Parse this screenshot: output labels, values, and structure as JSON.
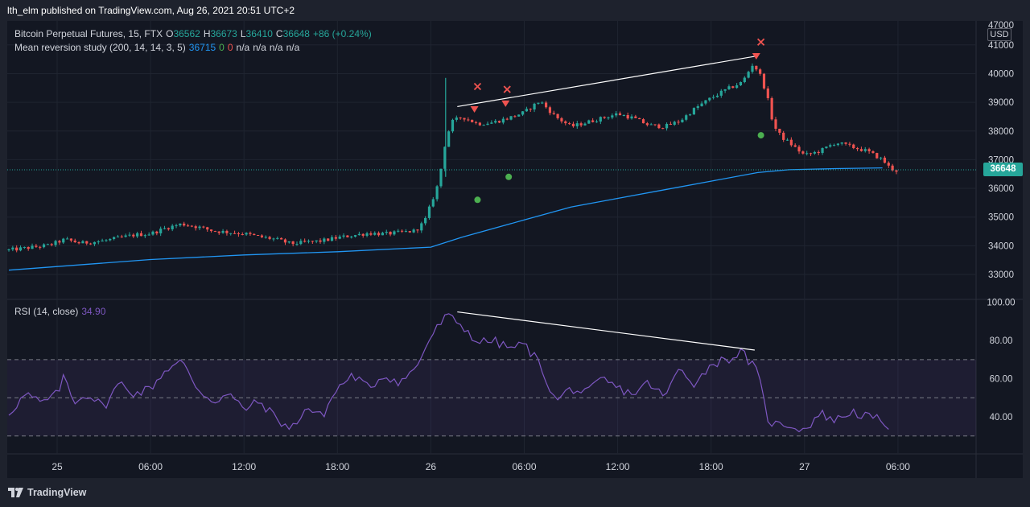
{
  "header": {
    "publisher_line": "lth_elm published on TradingView.com, Aug 26, 2021 20:51 UTC+2"
  },
  "legend": {
    "symbol": "Bitcoin Perpetual Futures, 15, FTX",
    "ohlc": {
      "o_label": "O",
      "o": "36562",
      "h_label": "H",
      "h": "36673",
      "l_label": "L",
      "l": "36410",
      "c_label": "C",
      "c": "36648",
      "change": "+86 (+0.24%)"
    },
    "study_name": "Mean reversion study (200, 14, 14, 3, 5)",
    "study_values": [
      "36715",
      "0",
      "0",
      "n/a",
      "n/a",
      "n/a",
      "n/a"
    ],
    "rsi_name": "RSI (14, close)",
    "rsi_value": "34.90"
  },
  "badges": {
    "last_price": "36648",
    "currency": "USD"
  },
  "footer": {
    "brand": "TradingView"
  },
  "colors": {
    "up": "#26a69a",
    "down": "#ef5350",
    "ma": "#2196f3",
    "rsi": "#7e57c2",
    "signal": "#4caf50",
    "background": "#131722"
  },
  "chart_data": [
    {
      "type": "candlestick",
      "ylim": [
        32500,
        47000
      ],
      "y_ticks": [
        "33000",
        "34000",
        "35000",
        "36000",
        "37000",
        "38000",
        "39000",
        "40000",
        "41000",
        "47000"
      ],
      "x_ticks": [
        {
          "label": "25",
          "hour": 0
        },
        {
          "label": "06:00",
          "hour": 6
        },
        {
          "label": "12:00",
          "hour": 12
        },
        {
          "label": "18:00",
          "hour": 18
        },
        {
          "label": "26",
          "hour": 24
        },
        {
          "label": "06:00",
          "hour": 30
        },
        {
          "label": "12:00",
          "hour": 36
        },
        {
          "label": "18:00",
          "hour": 42
        },
        {
          "label": "27",
          "hour": 48
        },
        {
          "label": "06:00",
          "hour": 54
        }
      ],
      "price_path": [
        {
          "h": -3.1,
          "p": 33850
        },
        {
          "h": -2,
          "p": 33920
        },
        {
          "h": -0.5,
          "p": 34020
        },
        {
          "h": 0.5,
          "p": 34220
        },
        {
          "h": 1.5,
          "p": 34090
        },
        {
          "h": 3,
          "p": 34170
        },
        {
          "h": 5,
          "p": 34380
        },
        {
          "h": 6,
          "p": 34420
        },
        {
          "h": 7,
          "p": 34620
        },
        {
          "h": 8,
          "p": 34760
        },
        {
          "h": 9,
          "p": 34660
        },
        {
          "h": 10,
          "p": 34520
        },
        {
          "h": 11,
          "p": 34470
        },
        {
          "h": 12,
          "p": 34420
        },
        {
          "h": 13,
          "p": 34310
        },
        {
          "h": 14,
          "p": 34230
        },
        {
          "h": 15,
          "p": 34070
        },
        {
          "h": 16,
          "p": 34120
        },
        {
          "h": 17,
          "p": 34170
        },
        {
          "h": 18,
          "p": 34280
        },
        {
          "h": 19,
          "p": 34360
        },
        {
          "h": 20,
          "p": 34440
        },
        {
          "h": 21,
          "p": 34410
        },
        {
          "h": 22,
          "p": 34460
        },
        {
          "h": 23,
          "p": 34520
        },
        {
          "h": 23.6,
          "p": 34850
        },
        {
          "h": 24,
          "p": 35450
        },
        {
          "h": 24.5,
          "p": 36200
        },
        {
          "h": 24.9,
          "p": 37500
        },
        {
          "h": 25.3,
          "p": 38300
        },
        {
          "h": 26,
          "p": 38500
        },
        {
          "h": 27,
          "p": 38250
        },
        {
          "h": 28,
          "p": 38300
        },
        {
          "h": 29,
          "p": 38450
        },
        {
          "h": 30,
          "p": 38650
        },
        {
          "h": 31,
          "p": 39050
        },
        {
          "h": 32,
          "p": 38500
        },
        {
          "h": 33,
          "p": 38150
        },
        {
          "h": 34,
          "p": 38300
        },
        {
          "h": 35,
          "p": 38450
        },
        {
          "h": 36,
          "p": 38600
        },
        {
          "h": 37,
          "p": 38450
        },
        {
          "h": 38,
          "p": 38200
        },
        {
          "h": 39,
          "p": 38150
        },
        {
          "h": 40,
          "p": 38350
        },
        {
          "h": 41,
          "p": 38800
        },
        {
          "h": 42,
          "p": 39150
        },
        {
          "h": 43,
          "p": 39450
        },
        {
          "h": 44,
          "p": 39700
        },
        {
          "h": 44.7,
          "p": 40350
        },
        {
          "h": 45.2,
          "p": 39900
        },
        {
          "h": 45.6,
          "p": 39200
        },
        {
          "h": 46,
          "p": 38200
        },
        {
          "h": 46.5,
          "p": 37800
        },
        {
          "h": 47,
          "p": 37600
        },
        {
          "h": 48,
          "p": 37150
        },
        {
          "h": 49,
          "p": 37300
        },
        {
          "h": 50,
          "p": 37600
        },
        {
          "h": 51,
          "p": 37450
        },
        {
          "h": 52,
          "p": 37300
        },
        {
          "h": 53,
          "p": 37000
        },
        {
          "h": 53.5,
          "p": 36700
        },
        {
          "h": 54,
          "p": 36600
        }
      ],
      "ma_path": [
        {
          "h": -3.1,
          "p": 33150
        },
        {
          "h": 6,
          "p": 33520
        },
        {
          "h": 12,
          "p": 33680
        },
        {
          "h": 18,
          "p": 33790
        },
        {
          "h": 24,
          "p": 33950
        },
        {
          "h": 26,
          "p": 34300
        },
        {
          "h": 30,
          "p": 34900
        },
        {
          "h": 33,
          "p": 35350
        },
        {
          "h": 36,
          "p": 35650
        },
        {
          "h": 39,
          "p": 35950
        },
        {
          "h": 42,
          "p": 36250
        },
        {
          "h": 45,
          "p": 36550
        },
        {
          "h": 47,
          "p": 36650
        },
        {
          "h": 50,
          "p": 36690
        },
        {
          "h": 53,
          "p": 36715
        }
      ],
      "trend_line": [
        {
          "h": 25.7,
          "p": 38850
        },
        {
          "h": 44.8,
          "p": 40600
        }
      ],
      "last_price": 36648,
      "sell_triangles": [
        {
          "h": 26.8,
          "p": 38750
        },
        {
          "h": 28.8,
          "p": 38950
        },
        {
          "h": 44.9,
          "p": 40600
        }
      ],
      "sell_crosses": [
        {
          "h": 27.0,
          "p": 39550
        },
        {
          "h": 28.9,
          "p": 39450
        },
        {
          "h": 45.2,
          "p": 41100
        }
      ],
      "buy_dots": [
        {
          "h": 27.0,
          "p": 35600
        },
        {
          "h": 29.0,
          "p": 36400
        },
        {
          "h": 45.2,
          "p": 37850
        }
      ]
    },
    {
      "type": "line",
      "ylim": [
        25,
        100
      ],
      "y_ticks": [
        "40.00",
        "60.00",
        "80.00",
        "100.00"
      ],
      "bands": {
        "upper": 70,
        "middle": 50,
        "lower": 30
      },
      "rsi_path": [
        {
          "h": -3.1,
          "p": 42
        },
        {
          "h": -2,
          "p": 52
        },
        {
          "h": -1,
          "p": 47
        },
        {
          "h": 0,
          "p": 52
        },
        {
          "h": 0.5,
          "p": 62
        },
        {
          "h": 1,
          "p": 48
        },
        {
          "h": 2,
          "p": 52
        },
        {
          "h": 3,
          "p": 45
        },
        {
          "h": 4,
          "p": 58
        },
        {
          "h": 5,
          "p": 52
        },
        {
          "h": 6,
          "p": 55
        },
        {
          "h": 7,
          "p": 65
        },
        {
          "h": 8,
          "p": 69
        },
        {
          "h": 9,
          "p": 55
        },
        {
          "h": 10,
          "p": 48
        },
        {
          "h": 11,
          "p": 52
        },
        {
          "h": 12,
          "p": 44
        },
        {
          "h": 13,
          "p": 48
        },
        {
          "h": 14,
          "p": 40
        },
        {
          "h": 15,
          "p": 33
        },
        {
          "h": 16,
          "p": 45
        },
        {
          "h": 17,
          "p": 40
        },
        {
          "h": 18,
          "p": 55
        },
        {
          "h": 19,
          "p": 62
        },
        {
          "h": 20,
          "p": 55
        },
        {
          "h": 21,
          "p": 62
        },
        {
          "h": 22,
          "p": 58
        },
        {
          "h": 23,
          "p": 65
        },
        {
          "h": 24,
          "p": 82
        },
        {
          "h": 25,
          "p": 93
        },
        {
          "h": 26,
          "p": 88
        },
        {
          "h": 27,
          "p": 79
        },
        {
          "h": 28,
          "p": 80
        },
        {
          "h": 29,
          "p": 76
        },
        {
          "h": 30,
          "p": 78
        },
        {
          "h": 31,
          "p": 68
        },
        {
          "h": 32,
          "p": 48
        },
        {
          "h": 33,
          "p": 55
        },
        {
          "h": 34,
          "p": 52
        },
        {
          "h": 35,
          "p": 60
        },
        {
          "h": 36,
          "p": 55
        },
        {
          "h": 37,
          "p": 52
        },
        {
          "h": 38,
          "p": 58
        },
        {
          "h": 39,
          "p": 50
        },
        {
          "h": 40,
          "p": 66
        },
        {
          "h": 41,
          "p": 57
        },
        {
          "h": 42,
          "p": 68
        },
        {
          "h": 43,
          "p": 70
        },
        {
          "h": 44,
          "p": 74
        },
        {
          "h": 45,
          "p": 63
        },
        {
          "h": 45.6,
          "p": 40
        },
        {
          "h": 46,
          "p": 36
        },
        {
          "h": 47,
          "p": 36
        },
        {
          "h": 48,
          "p": 33
        },
        {
          "h": 49,
          "p": 42
        },
        {
          "h": 50,
          "p": 38
        },
        {
          "h": 51,
          "p": 43
        },
        {
          "h": 52,
          "p": 40
        },
        {
          "h": 53,
          "p": 38
        },
        {
          "h": 53.5,
          "p": 34.9
        }
      ],
      "trend_line": [
        {
          "h": 25.7,
          "p": 95
        },
        {
          "h": 44.8,
          "p": 75
        }
      ]
    }
  ]
}
